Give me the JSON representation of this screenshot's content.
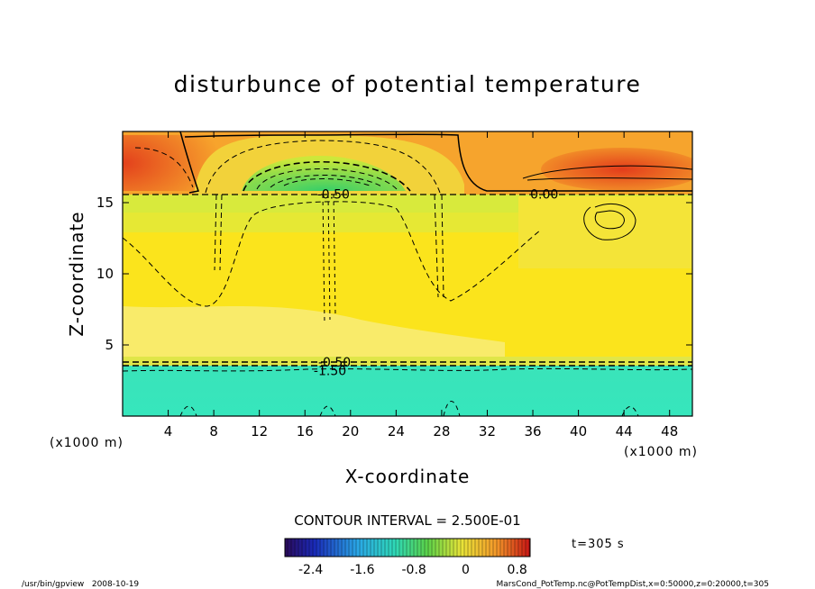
{
  "chart_data": {
    "type": "heatmap",
    "title": "disturbunce of potential temperature",
    "xlabel": "X-coordinate",
    "ylabel": "Z-coordinate",
    "x_unit_left": "(x1000 m)",
    "x_unit_right": "(x1000 m)",
    "xlim": [
      0,
      50
    ],
    "ylim": [
      0,
      20
    ],
    "x_ticks": [
      4,
      8,
      12,
      16,
      20,
      24,
      28,
      32,
      36,
      40,
      44,
      48
    ],
    "y_ticks": [
      5,
      10,
      15
    ],
    "contour_interval_text": "CONTOUR INTERVAL = 2.500E-01",
    "contour_labels": [
      {
        "text": "-0.50",
        "x": 18.5,
        "z": 15.6
      },
      {
        "text": "0.00",
        "x": 37.0,
        "z": 15.6
      },
      {
        "text": "-0.50",
        "x": 18.6,
        "z": 3.8
      },
      {
        "text": "-1.50",
        "x": 18.2,
        "z": 3.2
      }
    ],
    "colorbar": {
      "min": -2.8,
      "max": 1.0,
      "tick_values": [
        -2.4,
        -1.6,
        -0.8,
        0,
        0.8
      ],
      "tick_labels": [
        "-2.4",
        "-1.6",
        "-0.8",
        "0",
        "0.8"
      ]
    },
    "time_label": "t=305 s",
    "footer_left": "/usr/bin/gpview   2008-10-19",
    "footer_right": "MarsCond_PotTemp.nc@PotTempDist,x=0:50000,z=0:20000,t=305",
    "colors": {
      "top_red": "#e8481f",
      "top_orange": "#f59a2a",
      "upper_yellow": "#f0e43a",
      "yellow": "#fbe61f",
      "pale_yellow": "#f9f07a",
      "green_core": "#3ed36a",
      "bottom_cyan": "#34e3b8"
    }
  }
}
